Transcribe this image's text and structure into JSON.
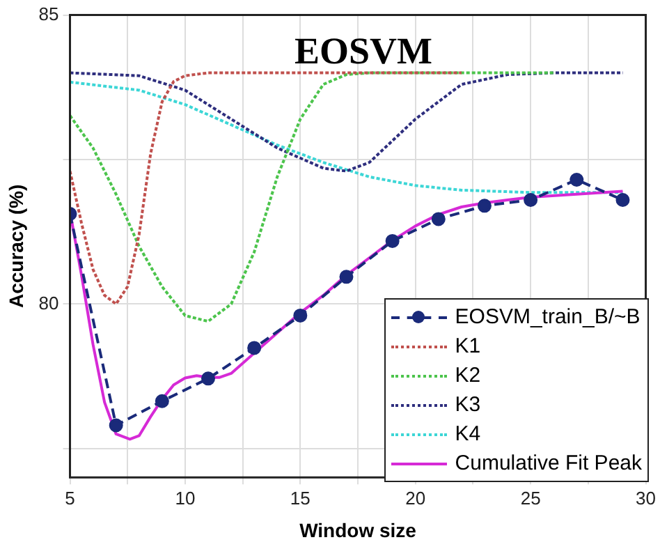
{
  "chart_data": {
    "type": "line",
    "title": "EOSVM",
    "xlabel": "Window size",
    "ylabel": "Accuracy (%)",
    "xlim": [
      5,
      30
    ],
    "xticks": [
      5,
      {
        "value": 7.5,
        "label": null
      },
      10,
      {
        "value": 12.5,
        "label": null
      },
      15,
      {
        "value": 17.5,
        "label": null
      },
      20,
      {
        "value": 22.5,
        "label": null
      },
      25,
      {
        "value": 27.5,
        "label": null
      },
      30
    ],
    "ylim": [
      77,
      85
    ],
    "yticks": [
      {
        "value": 77.5,
        "label": null
      },
      80,
      {
        "value": 82.5,
        "label": null
      },
      85
    ],
    "grid": true,
    "legend": "bottom right",
    "series": [
      {
        "name": "EOSVM_train_B/~B",
        "color": "#1a2a7a",
        "marker": "circle",
        "line_style": "dashed",
        "x": [
          5,
          7,
          9,
          11,
          13,
          15,
          17,
          19,
          21,
          23,
          25,
          27,
          29
        ],
        "values": [
          81.56,
          77.9,
          78.32,
          78.71,
          79.24,
          79.8,
          80.47,
          81.09,
          81.47,
          81.7,
          81.8,
          82.15,
          81.8
        ]
      },
      {
        "name": "K1",
        "color": "#c0504d",
        "marker": "none",
        "line_style": "dotted",
        "x": [
          5,
          5.5,
          6,
          6.5,
          7,
          7.5,
          8,
          8.5,
          9,
          9.5,
          10,
          11,
          15,
          20,
          22
        ],
        "values": [
          82.3,
          81.4,
          80.6,
          80.15,
          80.0,
          80.3,
          81.2,
          82.6,
          83.5,
          83.85,
          83.95,
          84,
          84,
          84,
          84
        ]
      },
      {
        "name": "K2",
        "color": "#4cc44c",
        "marker": "none",
        "line_style": "dotted",
        "x": [
          5,
          6,
          7,
          8,
          9,
          10,
          11,
          12,
          13,
          14,
          15,
          16,
          17,
          18,
          26
        ],
        "values": [
          83.26,
          82.7,
          81.9,
          81.0,
          80.3,
          79.8,
          79.7,
          80.0,
          80.9,
          82.2,
          83.2,
          83.8,
          83.97,
          84,
          84
        ]
      },
      {
        "name": "K3",
        "color": "#2e2e7e",
        "marker": "none",
        "line_style": "dotted",
        "x": [
          5,
          8,
          10,
          12,
          14,
          16,
          17,
          18,
          20,
          22,
          24,
          26,
          29
        ],
        "values": [
          84,
          83.95,
          83.7,
          83.2,
          82.7,
          82.35,
          82.3,
          82.45,
          83.2,
          83.8,
          83.97,
          84,
          84
        ]
      },
      {
        "name": "K4",
        "color": "#3cd6d6",
        "marker": "none",
        "line_style": "dotted",
        "x": [
          5,
          8,
          10,
          12,
          14,
          16,
          18,
          20,
          22,
          25,
          29
        ],
        "values": [
          83.84,
          83.7,
          83.45,
          83.1,
          82.75,
          82.45,
          82.2,
          82.05,
          81.97,
          81.93,
          81.93
        ]
      },
      {
        "name": "Cumulative Fit Peak",
        "color": "#d62ad6",
        "marker": "none",
        "line_style": "solid",
        "x": [
          5,
          5.5,
          6,
          6.5,
          7,
          7.6,
          8,
          8.5,
          9,
          9.5,
          10,
          10.5,
          11,
          11.5,
          12,
          13,
          14,
          15,
          16,
          17,
          18,
          19,
          20,
          21,
          22,
          23,
          24,
          25,
          27,
          29
        ],
        "values": [
          81.6,
          80.5,
          79.3,
          78.3,
          77.75,
          77.66,
          77.72,
          78.05,
          78.35,
          78.6,
          78.72,
          78.76,
          78.73,
          78.73,
          78.8,
          79.15,
          79.5,
          79.85,
          80.15,
          80.5,
          80.8,
          81.1,
          81.35,
          81.55,
          81.68,
          81.75,
          81.8,
          81.85,
          81.9,
          81.95
        ]
      }
    ]
  }
}
